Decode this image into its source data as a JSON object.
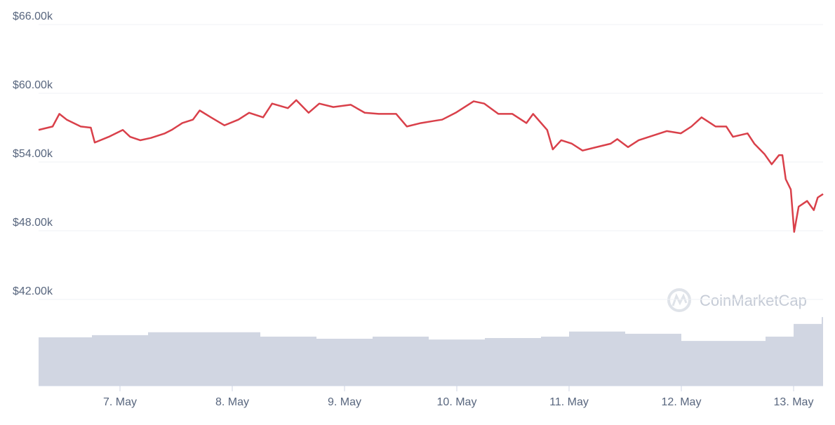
{
  "chart_data": {
    "type": "line",
    "watermark": "CoinMarketCap",
    "x": [
      6.275,
      6.4,
      6.46,
      6.525,
      6.65,
      6.74,
      6.775,
      6.9,
      7.025,
      7.09,
      7.18,
      7.275,
      7.4,
      7.46,
      7.555,
      7.65,
      7.71,
      7.81,
      7.93,
      8.055,
      8.15,
      8.275,
      8.355,
      8.495,
      8.57,
      8.68,
      8.775,
      8.9,
      9.055,
      9.18,
      9.305,
      9.46,
      9.555,
      9.68,
      9.805,
      9.87,
      9.99,
      10.15,
      10.245,
      10.37,
      10.495,
      10.62,
      10.68,
      10.805,
      10.855,
      10.93,
      11.025,
      11.12,
      11.245,
      11.37,
      11.43,
      11.525,
      11.62,
      11.745,
      11.87,
      11.995,
      12.09,
      12.18,
      12.305,
      12.4,
      12.46,
      12.59,
      12.65,
      12.74,
      12.805,
      12.87,
      12.9,
      12.93,
      12.975,
      13.005,
      13.045,
      13.12,
      13.18,
      13.215,
      13.2625
    ],
    "series": [
      {
        "color": "#d9404a",
        "values": [
          56800,
          57100,
          58200,
          57700,
          57100,
          57000,
          55700,
          56200,
          56800,
          56200,
          55900,
          56100,
          56500,
          56800,
          57400,
          57700,
          58500,
          57900,
          57200,
          57700,
          58300,
          57900,
          59100,
          58700,
          59400,
          58300,
          59100,
          58800,
          59000,
          58300,
          58200,
          58200,
          57100,
          57400,
          57600,
          57700,
          58300,
          59300,
          59100,
          58200,
          58200,
          57400,
          58200,
          56800,
          55100,
          55900,
          55600,
          55000,
          55300,
          55600,
          56000,
          55300,
          55900,
          56300,
          56700,
          56500,
          57100,
          57900,
          57100,
          57100,
          56200,
          56500,
          55600,
          54700,
          53800,
          54600,
          54600,
          52500,
          51600,
          47900,
          50100,
          50600,
          49800,
          50900,
          51200
        ]
      },
      {
        "color": "#d1d6e2",
        "axis": "y2",
        "x": [
          6.275,
          6.75,
          7.25,
          7.75,
          8.25,
          8.75,
          9.25,
          9.75,
          10.25,
          10.75,
          11.0,
          11.5,
          12.0,
          12.5,
          12.75,
          13.0,
          13.25
        ],
        "values": [
          13.4,
          14,
          14.8,
          14.8,
          13.6,
          13,
          13.6,
          12.8,
          13.2,
          13.6,
          15,
          14.4,
          12.4,
          12.4,
          13.6,
          17.1,
          19
        ]
      }
    ],
    "xlim": [
      6.275,
      13.2625
    ],
    "xticks": [
      {
        "value": 7,
        "label": "7. May"
      },
      {
        "value": 8,
        "label": "8. May"
      },
      {
        "value": 9,
        "label": "9. May"
      },
      {
        "value": 10,
        "label": "10. May"
      },
      {
        "value": 11,
        "label": "11. May"
      },
      {
        "value": 12,
        "label": "12. May"
      },
      {
        "value": 13,
        "label": "13. May"
      }
    ],
    "ylim": [
      42000,
      66000
    ],
    "yticks": [
      {
        "value": 66000,
        "label": "$66.00k"
      },
      {
        "value": 60000,
        "label": "$60.00k"
      },
      {
        "value": 54000,
        "label": "$54.00k"
      },
      {
        "value": 48000,
        "label": "$48.00k"
      },
      {
        "value": 42000,
        "label": "$42.00k"
      }
    ],
    "y2lim": [
      0,
      100
    ],
    "grid": true
  }
}
